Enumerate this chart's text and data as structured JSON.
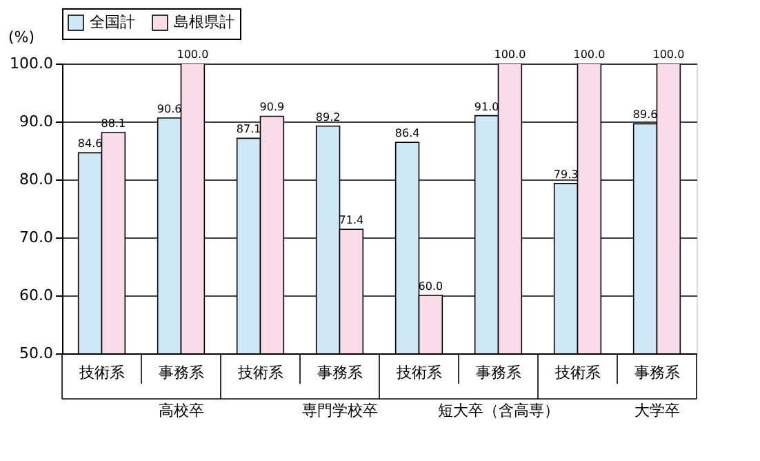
{
  "chart_data": {
    "type": "bar",
    "categories": [
      "技術系",
      "事務系",
      "技術系",
      "事務系",
      "技術系",
      "事務系",
      "技術系",
      "事務系"
    ],
    "series": [
      {
        "name": "全国計",
        "color": "#cfe8f8",
        "values": [
          84.6,
          90.6,
          87.1,
          89.2,
          86.4,
          91.0,
          79.3,
          89.6
        ],
        "value_labels": [
          "84.6",
          "90.6",
          "87.1",
          "89.2",
          "86.4",
          "91.0",
          "79.3",
          "89.6"
        ]
      },
      {
        "name": "島根県計",
        "color": "#fadbe8",
        "values": [
          88.1,
          100.0,
          90.9,
          71.4,
          60.0,
          100.0,
          100.0,
          100.0
        ],
        "value_labels": [
          "88.1",
          "100.0",
          "90.9",
          "71.4",
          "60.0",
          "100.0",
          "100.0",
          "100.0"
        ]
      }
    ],
    "ylabel": "(%)",
    "ylim": [
      50,
      100
    ],
    "yticks": [
      {
        "value": 50,
        "label": "50.0"
      },
      {
        "value": 60,
        "label": "60.0"
      },
      {
        "value": 70,
        "label": "70.0"
      },
      {
        "value": 80,
        "label": "80.0"
      },
      {
        "value": 90,
        "label": "90.0"
      },
      {
        "value": 100,
        "label": "100.0"
      }
    ],
    "annotations": [
      "高校卒",
      "専門学校卒",
      "短大卒（含高専）",
      "大学卒"
    ],
    "grid": "y",
    "legend": "top"
  }
}
